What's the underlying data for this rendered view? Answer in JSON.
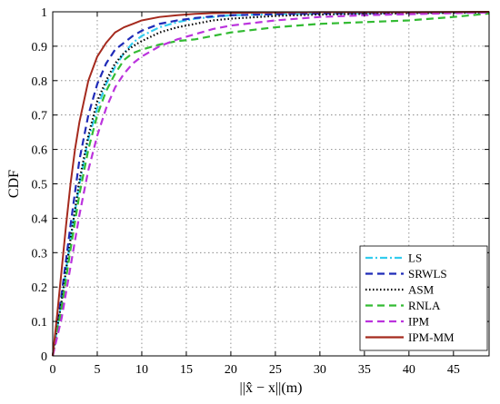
{
  "chart_data": {
    "type": "line",
    "xlabel": "||x̂ − x||(m)",
    "ylabel": "CDF",
    "xlim": [
      0,
      49
    ],
    "ylim": [
      0,
      1
    ],
    "x_ticks": [
      0,
      5,
      10,
      15,
      20,
      25,
      30,
      35,
      40,
      45
    ],
    "y_ticks": [
      0,
      0.1,
      0.2,
      0.3,
      0.4,
      0.5,
      0.6,
      0.7,
      0.8,
      0.9,
      1
    ],
    "grid": true,
    "legend_position": "bottom-right",
    "series": [
      {
        "name": "LS",
        "color": "#33ccee",
        "dash": "dashdot",
        "x": [
          0,
          1,
          2,
          3,
          4,
          5,
          6,
          7,
          8,
          9,
          10,
          12,
          14,
          16,
          18,
          20,
          25,
          30,
          35,
          40,
          45,
          49
        ],
        "y": [
          0,
          0.16,
          0.34,
          0.5,
          0.63,
          0.72,
          0.79,
          0.84,
          0.88,
          0.91,
          0.93,
          0.955,
          0.97,
          0.98,
          0.985,
          0.99,
          0.993,
          0.995,
          0.996,
          0.997,
          0.998,
          0.999
        ]
      },
      {
        "name": "SRWLS",
        "color": "#1f2bb8",
        "dash": "dash",
        "x": [
          0,
          1,
          2,
          3,
          4,
          5,
          6,
          7,
          8,
          9,
          10,
          12,
          14,
          16,
          18,
          20,
          25,
          30,
          35,
          40,
          45,
          49
        ],
        "y": [
          0,
          0.18,
          0.38,
          0.57,
          0.7,
          0.79,
          0.85,
          0.89,
          0.91,
          0.93,
          0.945,
          0.965,
          0.975,
          0.982,
          0.987,
          0.99,
          0.993,
          0.995,
          0.996,
          0.997,
          0.998,
          0.999
        ]
      },
      {
        "name": "ASM",
        "color": "#000000",
        "dash": "dot",
        "x": [
          0,
          1,
          2,
          3,
          4,
          5,
          6,
          7,
          8,
          9,
          10,
          12,
          14,
          16,
          18,
          20,
          25,
          30,
          35,
          40,
          45,
          49
        ],
        "y": [
          0,
          0.16,
          0.34,
          0.51,
          0.64,
          0.74,
          0.8,
          0.85,
          0.88,
          0.9,
          0.915,
          0.94,
          0.955,
          0.965,
          0.975,
          0.98,
          0.988,
          0.992,
          0.994,
          0.996,
          0.997,
          0.998
        ]
      },
      {
        "name": "RNLA",
        "color": "#33bb33",
        "dash": "dash",
        "x": [
          0,
          1,
          2,
          3,
          4,
          5,
          6,
          7,
          8,
          9,
          10,
          12,
          14,
          16,
          18,
          20,
          25,
          30,
          35,
          40,
          45,
          49
        ],
        "y": [
          0,
          0.14,
          0.31,
          0.47,
          0.6,
          0.7,
          0.77,
          0.82,
          0.86,
          0.88,
          0.89,
          0.905,
          0.915,
          0.92,
          0.93,
          0.94,
          0.955,
          0.965,
          0.97,
          0.975,
          0.985,
          0.995
        ]
      },
      {
        "name": "IPM",
        "color": "#bb33dd",
        "dash": "dash",
        "x": [
          0,
          1,
          2,
          3,
          4,
          5,
          6,
          7,
          8,
          9,
          10,
          12,
          14,
          16,
          18,
          20,
          25,
          30,
          35,
          40,
          45,
          49
        ],
        "y": [
          0,
          0.11,
          0.26,
          0.41,
          0.54,
          0.64,
          0.72,
          0.78,
          0.82,
          0.85,
          0.87,
          0.9,
          0.92,
          0.935,
          0.95,
          0.96,
          0.975,
          0.985,
          0.99,
          0.993,
          0.996,
          0.998
        ]
      },
      {
        "name": "IPM-MM",
        "color": "#a52a1e",
        "dash": "solid",
        "x": [
          0,
          0.5,
          1,
          1.5,
          2,
          2.5,
          3,
          3.5,
          4,
          5,
          6,
          7,
          8,
          9,
          10,
          12,
          14,
          16,
          18,
          20,
          25,
          30,
          40,
          49
        ],
        "y": [
          0,
          0.12,
          0.25,
          0.38,
          0.5,
          0.6,
          0.68,
          0.74,
          0.8,
          0.87,
          0.91,
          0.94,
          0.955,
          0.965,
          0.975,
          0.985,
          0.99,
          0.994,
          0.996,
          0.997,
          0.998,
          0.999,
          0.999,
          1.0
        ]
      }
    ]
  }
}
